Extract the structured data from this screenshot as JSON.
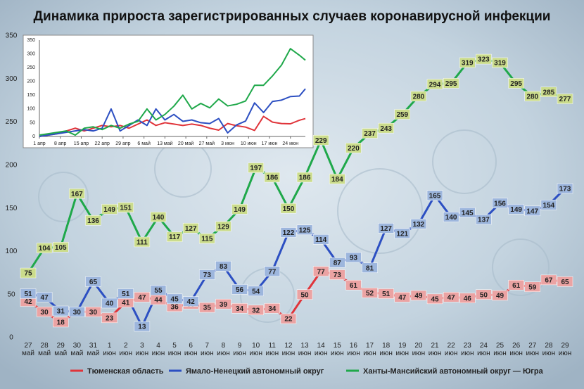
{
  "chart_data": [
    {
      "type": "line",
      "title": "Динамика прироста зарегистрированных случаев коронавирусной инфекции",
      "categories": [
        "27 май",
        "28 май",
        "29 май",
        "30 май",
        "31 май",
        "1 июн",
        "2 июн",
        "3 июн",
        "4 июн",
        "5 июн",
        "6 июн",
        "7 июн",
        "8 июн",
        "9 июн",
        "10 июн",
        "11 июн",
        "12 июн",
        "13 июн",
        "14 июн",
        "15 июн",
        "16 июн",
        "17 июн",
        "18 июн",
        "19 июн",
        "20 июн",
        "21 июн",
        "22 июн",
        "23 июн",
        "24 июн",
        "25 июн",
        "26 июн",
        "27 июн",
        "28 июн",
        "29 июн"
      ],
      "ylim": [
        0,
        350
      ],
      "yticks": [
        0,
        50,
        100,
        150,
        200,
        250,
        300,
        350
      ],
      "grid": false,
      "data_labels": true,
      "legend": "bottom",
      "series": [
        {
          "name": "Тюменская область",
          "color": "#e0343a",
          "label_color": "#eba3a3",
          "values": [
            42,
            30,
            18,
            30,
            30,
            23,
            41,
            47,
            44,
            36,
            39,
            35,
            39,
            34,
            32,
            34,
            22,
            50,
            77,
            73,
            61,
            52,
            51,
            47,
            49,
            45,
            47,
            46,
            50,
            49,
            61,
            59,
            67,
            65
          ]
        },
        {
          "name": "Ямало-Ненецкий автономный округ",
          "color": "#2c4fc2",
          "label_color": "#9db6dd",
          "values": [
            51,
            47,
            31,
            30,
            65,
            40,
            51,
            13,
            55,
            45,
            42,
            73,
            83,
            56,
            54,
            77,
            122,
            125,
            114,
            87,
            93,
            81,
            127,
            121,
            132,
            165,
            140,
            145,
            137,
            156,
            149,
            147,
            154,
            173
          ]
        },
        {
          "name": "Ханты-Мансийский автономный округ — Югра",
          "color": "#1fa84a",
          "label_color": "#cbdc8c",
          "values": [
            75,
            104,
            105,
            167,
            136,
            149,
            151,
            111,
            140,
            117,
            127,
            115,
            129,
            149,
            197,
            186,
            150,
            186,
            229,
            184,
            220,
            237,
            243,
            259,
            280,
            294,
            295,
            319,
            323,
            319,
            295,
            280,
            285,
            277
          ]
        }
      ]
    },
    {
      "type": "line",
      "grid": false,
      "data_labels": false,
      "x": [
        0,
        3,
        6,
        9,
        12,
        15,
        18,
        21,
        24,
        27,
        30,
        33,
        36,
        39,
        42,
        45,
        48,
        51,
        54,
        57,
        60,
        63,
        66,
        69,
        72,
        75,
        78,
        81,
        84,
        87,
        89
      ],
      "xlim": [
        0,
        89
      ],
      "xticks": [
        {
          "value": 0,
          "label": "1 апр"
        },
        {
          "value": 7,
          "label": "8 апр"
        },
        {
          "value": 14,
          "label": "15 апр"
        },
        {
          "value": 21,
          "label": "22 апр"
        },
        {
          "value": 28,
          "label": "29 апр"
        },
        {
          "value": 35,
          "label": "6 май"
        },
        {
          "value": 42,
          "label": "13 май"
        },
        {
          "value": 49,
          "label": "20 май"
        },
        {
          "value": 56,
          "label": "27 май"
        },
        {
          "value": 63,
          "label": "3 июн"
        },
        {
          "value": 70,
          "label": "10 июн"
        },
        {
          "value": 77,
          "label": "17 июн"
        },
        {
          "value": 84,
          "label": "24 июн"
        }
      ],
      "ylim": [
        0,
        350
      ],
      "yticks": [
        0,
        50,
        100,
        150,
        200,
        250,
        300,
        350
      ],
      "series": [
        {
          "color": "#e0343a",
          "values": [
            0,
            5,
            10,
            20,
            30,
            20,
            30,
            40,
            35,
            40,
            30,
            45,
            60,
            40,
            50,
            45,
            40,
            45,
            40,
            30,
            23,
            47,
            39,
            34,
            22,
            73,
            52,
            47,
            46,
            59,
            65
          ]
        },
        {
          "color": "#2c4fc2",
          "values": [
            0,
            5,
            10,
            15,
            20,
            25,
            20,
            30,
            100,
            20,
            40,
            60,
            40,
            100,
            60,
            80,
            55,
            60,
            50,
            47,
            65,
            13,
            42,
            56,
            122,
            87,
            127,
            132,
            145,
            147,
            173
          ]
        },
        {
          "color": "#1fa84a",
          "values": [
            5,
            10,
            15,
            20,
            5,
            30,
            35,
            25,
            40,
            30,
            45,
            55,
            100,
            60,
            80,
            110,
            150,
            100,
            120,
            104,
            136,
            111,
            117,
            129,
            186,
            186,
            220,
            259,
            319,
            295,
            277
          ]
        }
      ]
    }
  ]
}
